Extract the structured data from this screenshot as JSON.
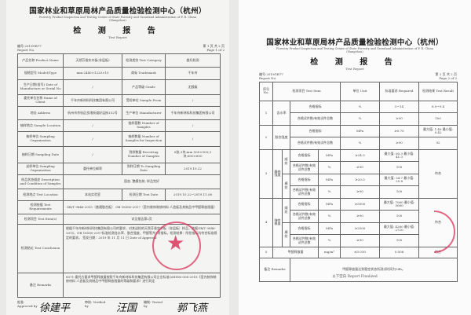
{
  "header": {
    "org_cn": "国家林业和草原局林产品质量检验检测中心（杭州）",
    "org_en": "Forestry Product Inspection and Testing Center of State Forestry and Grassland Administration of P. R. China",
    "org_city": "(Hangzhou)",
    "title_cn": "检 测 报 告",
    "title_en": "Test Report"
  },
  "page1": {
    "report_no": "编号:2019GR77",
    "report_no_en": "Report No.",
    "page_cn": "第 1 页 共 2 页",
    "page_en": "Page 1 of 2",
    "rows": [
      [
        "产品名称 Product Name",
        "天然芬香实木板(非层板)",
        "检测类别 Test Category",
        "委托检测"
      ],
      [
        "规格型号 Model/Type",
        "mm:2440×1220×15",
        "商标 Trademark",
        "千年舟"
      ],
      [
        "生产日期(批号) Date of Manufacture or Serial No",
        "/",
        "产品等级 Grade",
        "无醛级"
      ],
      [
        "委托单位名称 Name of Client",
        "千年舟新材料科技集团有限公司",
        "受检单位 Sample From",
        "/"
      ],
      [
        "地址 Address",
        "杭州市余杭区良渚街道好运街152号",
        "生产单位 Manufacturer",
        "千年舟新材料科技集团有限公司"
      ],
      [
        "抽样地点 Sample Location",
        "/",
        "抽样基数 Number of Samples",
        "/"
      ],
      [
        "抽样单位 Sampling Organization",
        "/",
        "抽样数量 Number of Samples for Inspection",
        "/"
      ],
      [
        "抽样日期 Sampling Date",
        "/",
        "到样数量 Receiving Number of Samples",
        "6张,3块:mm 500×500;3块:600×600"
      ],
      [
        "送样单位 Sampling Organization",
        "委托单位邮寄",
        "到样日期 To Sampling Date",
        "2019.10.22"
      ],
      [
        "样品状态描述 Description and Condition of Samples",
        "固态, 整膜包装, 样品完好"
      ],
      [
        "检测地点 Test Location",
        "本站实验室",
        "检测日期 Test Date",
        "2019.10.22~2019.11.08"
      ],
      [
        "检测依据 Test Requirements",
        "GB/T 9846-2015（普通胶合板） GB 18580-2017（室内装饰装修材料 人造板及其制品中甲醛释放限量）"
      ],
      [
        "检测项目 Test Item(s)",
        "详见报告第2页"
      ],
      [
        "检测结论 Test Conclusion",
        "根据千年舟新材料科技集团有限公司的要求，对其送检的天然芬香实木板（非层板）样品，依据GB/T 9846-2015、GB 18580-2017标准检测含水率、胶合强度、甲醛等共7项指标。检测结果：所检指标均符合标准规定的要求。 签发日期：2019 年 11 月 11 日 Date of Approval"
      ],
      [
        "备注 Remarks",
        "8071 委托方要求甲醛释放量按照千年舟新材料科技集团有限公司企业标准Q/HNM 008-2018《室内装饰装修材料 人造板及其制品中甲醛释放限量的等级和要求》进行判定"
      ]
    ],
    "signatures": [
      {
        "role": "批准: Approved by",
        "name": "徐建平"
      },
      {
        "role": "审核: Verified by",
        "name": "汪国"
      },
      {
        "role": "编制: Tested by",
        "name": "郭飞燕"
      }
    ]
  },
  "page2": {
    "report_no": "编号:2019GR77",
    "report_no_en": "Report No.",
    "page_cn": "第 2 页 共 2 页",
    "page_en": "Page 2 of 2",
    "columns": [
      "序号 No.",
      "检测项目 Test Item",
      "单位 Unit",
      "标准要求 Required",
      "检测结果 Test Result",
      "单项判定 Conclusion"
    ],
    "items": [
      {
        "no": "1",
        "name": "含水率",
        "conclusion": "符合",
        "groups": [
          {
            "dir": "",
            "rows": [
              [
                "合格指标",
                "%",
                "5~14",
                "8.9~9.4"
              ],
              [
                "合格试件数/有效试件总数",
                "%",
                "≥90",
                "100"
              ]
            ]
          }
        ]
      },
      {
        "no": "2",
        "name": "胶合强度",
        "conclusion": "符合",
        "groups": [
          {
            "dir": "",
            "rows": [
              [
                "合格指标",
                "MPa",
                "≥0.70",
                "最大值: 1.49 最小值: 0.42"
              ],
              [
                "合格试件数/有效试件总数",
                "%",
                "≥90",
                "92"
              ]
            ]
          }
        ]
      },
      {
        "no": "3",
        "name": "静曲强度",
        "conclusion": "符合",
        "groups": [
          {
            "dir": "顺纹",
            "rows": [
              [
                "合格指标",
                "MPa",
                "≥24.0",
                "最大值: 60.3 最小值: 41.3"
              ],
              [
                "合格试件数/有效试件总数",
                "%",
                "≥90",
                "100"
              ]
            ]
          },
          {
            "dir": "横纹",
            "rows": [
              [
                "合格指标",
                "MPa",
                "≥20.0",
                "最大值: 34.7 最小值: 25.8"
              ],
              [
                "合格试件数/有效试件总数",
                "%",
                "≥90",
                "100"
              ]
            ]
          }
        ]
      },
      {
        "no": "4",
        "name": "弹性模量",
        "conclusion": "符合",
        "groups": [
          {
            "dir": "顺纹",
            "rows": [
              [
                "合格指标",
                "MPa",
                "≥5000",
                "最大值: 7060 最小值: 5060"
              ],
              [
                "合格试件数/有效试件总数",
                "%",
                "≥90",
                "100"
              ]
            ]
          },
          {
            "dir": "横纹",
            "rows": [
              [
                "合格指标",
                "MPa",
                "≥2500",
                "最大值: 4260 最小值: 2720"
              ],
              [
                "合格试件数/有效试件总数",
                "%",
                "≥90",
                "100"
              ]
            ]
          }
        ]
      },
      {
        "no": "5",
        "name": "甲醛释放量",
        "conclusion": "符合",
        "groups": [
          {
            "dir": "",
            "rows": [
              [
                "",
                "mg/m³",
                "≤0.030",
                "0.006"
              ]
            ]
          }
        ]
      }
    ],
    "remarks_label": "备注 Remarks",
    "remarks": "甲醛释放量达到稳定状态所测试时间为54h。",
    "footer": "以下空白 Report Finalized"
  },
  "colors": {
    "stamp": "#d9365e",
    "paper": "#f4f4f2"
  }
}
